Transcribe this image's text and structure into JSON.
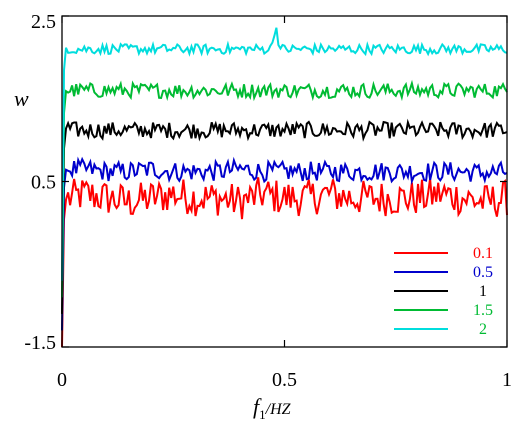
{
  "chart_data": {
    "type": "line",
    "title": "",
    "xlabel": "f1/HZ",
    "xlabel_main": "f",
    "xlabel_sub": "1",
    "xlabel_unit": "/HZ",
    "ylabel": "w",
    "xlim": [
      0,
      1
    ],
    "ylim": [
      -1.5,
      2.5
    ],
    "x_ticks": [
      0,
      0.5,
      1
    ],
    "x_tick_labels": [
      "0",
      "0.5",
      "1"
    ],
    "y_ticks": [
      -1.5,
      0.5,
      2.5
    ],
    "y_tick_labels": [
      "-1.5",
      "0.5",
      "2.5"
    ],
    "grid": false,
    "legend_position": "bottom-right",
    "series": [
      {
        "name": "0.1",
        "color": "#ff0000",
        "start_value": -1.5,
        "x": [
          0,
          0.005,
          0.01,
          0.02,
          0.05,
          0.1,
          0.15,
          0.2,
          0.25,
          0.3,
          0.35,
          0.4,
          0.45,
          0.5,
          0.55,
          0.6,
          0.65,
          0.7,
          0.75,
          0.8,
          0.85,
          0.9,
          0.95,
          1.0
        ],
        "values": [
          -1.5,
          0.2,
          0.3,
          0.3,
          0.35,
          0.3,
          0.25,
          0.3,
          0.35,
          0.3,
          0.3,
          0.25,
          0.35,
          0.3,
          0.3,
          0.35,
          0.3,
          0.3,
          0.3,
          0.3,
          0.35,
          0.3,
          0.25,
          0.3
        ],
        "noise": 0.22
      },
      {
        "name": "0.5",
        "color": "#0000cc",
        "start_value": -1.3,
        "x": [
          0,
          0.005,
          0.01,
          0.02,
          0.05,
          0.1,
          0.15,
          0.2,
          0.25,
          0.3,
          0.35,
          0.4,
          0.45,
          0.5,
          0.55,
          0.6,
          0.65,
          0.7,
          0.75,
          0.8,
          0.85,
          0.9,
          0.95,
          1.0
        ],
        "values": [
          -1.3,
          0.6,
          0.65,
          0.65,
          0.65,
          0.62,
          0.62,
          0.65,
          0.62,
          0.62,
          0.62,
          0.65,
          0.62,
          0.62,
          0.62,
          0.62,
          0.62,
          0.62,
          0.62,
          0.62,
          0.62,
          0.62,
          0.6,
          0.62
        ],
        "noise": 0.12
      },
      {
        "name": "1",
        "color": "#000000",
        "start_value": -1.1,
        "x": [
          0,
          0.005,
          0.01,
          0.02,
          0.05,
          0.1,
          0.15,
          0.2,
          0.25,
          0.3,
          0.35,
          0.4,
          0.45,
          0.5,
          0.55,
          0.6,
          0.65,
          0.7,
          0.75,
          0.8,
          0.85,
          0.9,
          0.95,
          1.0
        ],
        "values": [
          -1.1,
          1.1,
          1.15,
          1.12,
          1.12,
          1.12,
          1.12,
          1.12,
          1.12,
          1.12,
          1.12,
          1.12,
          1.12,
          1.12,
          1.12,
          1.12,
          1.12,
          1.12,
          1.12,
          1.12,
          1.12,
          1.12,
          1.12,
          1.12
        ],
        "noise": 0.1
      },
      {
        "name": "1.5",
        "color": "#00bb33",
        "start_value": -0.9,
        "x": [
          0,
          0.005,
          0.01,
          0.02,
          0.05,
          0.1,
          0.15,
          0.2,
          0.25,
          0.3,
          0.35,
          0.4,
          0.45,
          0.5,
          0.55,
          0.6,
          0.65,
          0.7,
          0.75,
          0.8,
          0.85,
          0.9,
          0.95,
          1.0
        ],
        "values": [
          -0.9,
          1.55,
          1.6,
          1.6,
          1.6,
          1.6,
          1.6,
          1.6,
          1.6,
          1.6,
          1.6,
          1.6,
          1.6,
          1.6,
          1.6,
          1.6,
          1.6,
          1.6,
          1.6,
          1.6,
          1.6,
          1.6,
          1.6,
          1.6
        ],
        "noise": 0.09
      },
      {
        "name": "2",
        "color": "#00dddd",
        "start_value": -0.7,
        "x": [
          0,
          0.005,
          0.01,
          0.02,
          0.05,
          0.1,
          0.15,
          0.2,
          0.25,
          0.3,
          0.35,
          0.4,
          0.45,
          0.47,
          0.48,
          0.49,
          0.5,
          0.55,
          0.6,
          0.65,
          0.7,
          0.75,
          0.8,
          0.85,
          0.9,
          0.95,
          1.0
        ],
        "values": [
          -0.7,
          2.1,
          2.12,
          2.1,
          2.1,
          2.1,
          2.1,
          2.1,
          2.1,
          2.1,
          2.1,
          2.1,
          2.1,
          2.1,
          2.4,
          2.1,
          2.1,
          2.1,
          2.1,
          2.1,
          2.1,
          2.1,
          2.1,
          2.1,
          2.1,
          2.1,
          2.1
        ],
        "noise": 0.06
      }
    ]
  }
}
